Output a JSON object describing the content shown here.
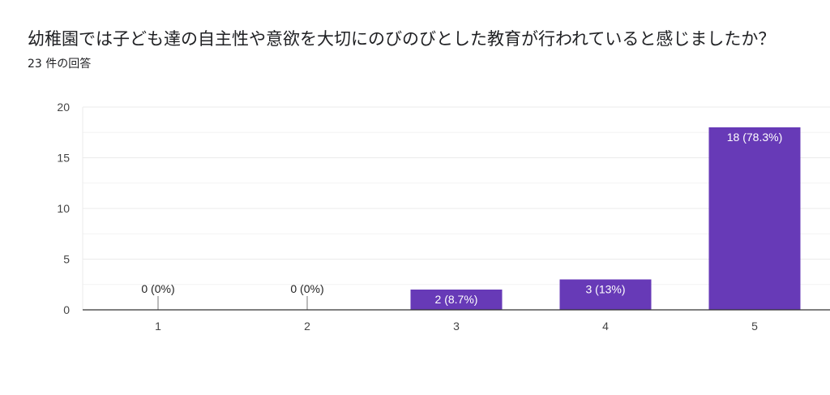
{
  "header": {
    "question": "幼稚園では子ども達の自主性や意欲を大切にのびのびとした教育が行われていると感じましたか？",
    "response_count": "23 件の回答"
  },
  "colors": {
    "bar": "#673ab7",
    "grid": "#ebebeb",
    "axis": "#333333",
    "label_inside": "#ffffff",
    "label_outside": "#222222"
  },
  "chart_data": {
    "type": "bar",
    "categories": [
      "1",
      "2",
      "3",
      "4",
      "5"
    ],
    "values": [
      0,
      0,
      2,
      3,
      18
    ],
    "data_labels": [
      "0 (0%)",
      "0 (0%)",
      "2 (8.7%)",
      "3 (13%)",
      "18 (78.3%)"
    ],
    "ylim": [
      0,
      20
    ],
    "y_ticks": [
      0,
      5,
      10,
      15,
      20
    ],
    "grid": true
  }
}
